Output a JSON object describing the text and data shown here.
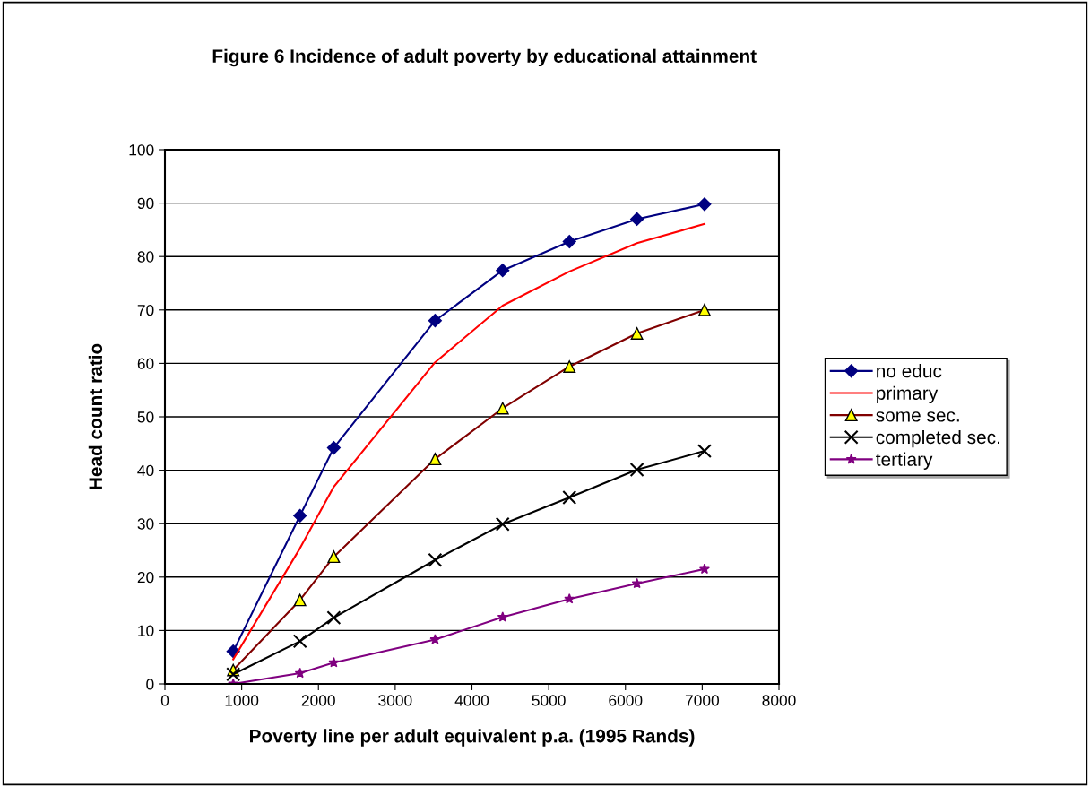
{
  "chart_data": {
    "type": "line",
    "title": "Figure 6 Incidence of adult poverty by educational attainment",
    "xlabel": "Poverty line per adult equivalent p.a. (1995 Rands)",
    "ylabel": "Head count ratio",
    "x": [
      890,
      1760,
      2200,
      3520,
      4400,
      5270,
      6150,
      7030
    ],
    "series": [
      {
        "name": "no educ",
        "color": "#000080",
        "marker": "diamond",
        "values": [
          6.1,
          31.5,
          44.2,
          68.0,
          77.4,
          82.8,
          87.0,
          89.8
        ]
      },
      {
        "name": "primary",
        "color": "#ff0000",
        "marker": "none",
        "values": [
          4.6,
          25.4,
          36.9,
          60.2,
          70.8,
          77.2,
          82.5,
          86.1
        ]
      },
      {
        "name": "some sec.",
        "color": "#800000",
        "marker": "triangle",
        "values": [
          2.6,
          15.7,
          23.8,
          42.1,
          51.6,
          59.4,
          65.6,
          70.0
        ]
      },
      {
        "name": "completed sec.",
        "color": "#000000",
        "marker": "cross",
        "values": [
          1.8,
          8.0,
          12.4,
          23.2,
          29.9,
          34.9,
          40.1,
          43.6
        ]
      },
      {
        "name": "tertiary",
        "color": "#800080",
        "marker": "star",
        "values": [
          0.0,
          2.0,
          4.0,
          8.3,
          12.5,
          15.9,
          18.8,
          21.5
        ]
      }
    ],
    "xlim": [
      0,
      8000
    ],
    "xticks": [
      0,
      1000,
      2000,
      3000,
      4000,
      5000,
      6000,
      7000,
      8000
    ],
    "ylim": [
      0,
      100
    ],
    "yticks": [
      0,
      10,
      20,
      30,
      40,
      50,
      60,
      70,
      80,
      90,
      100
    ],
    "grid": "y",
    "legend": "right"
  }
}
